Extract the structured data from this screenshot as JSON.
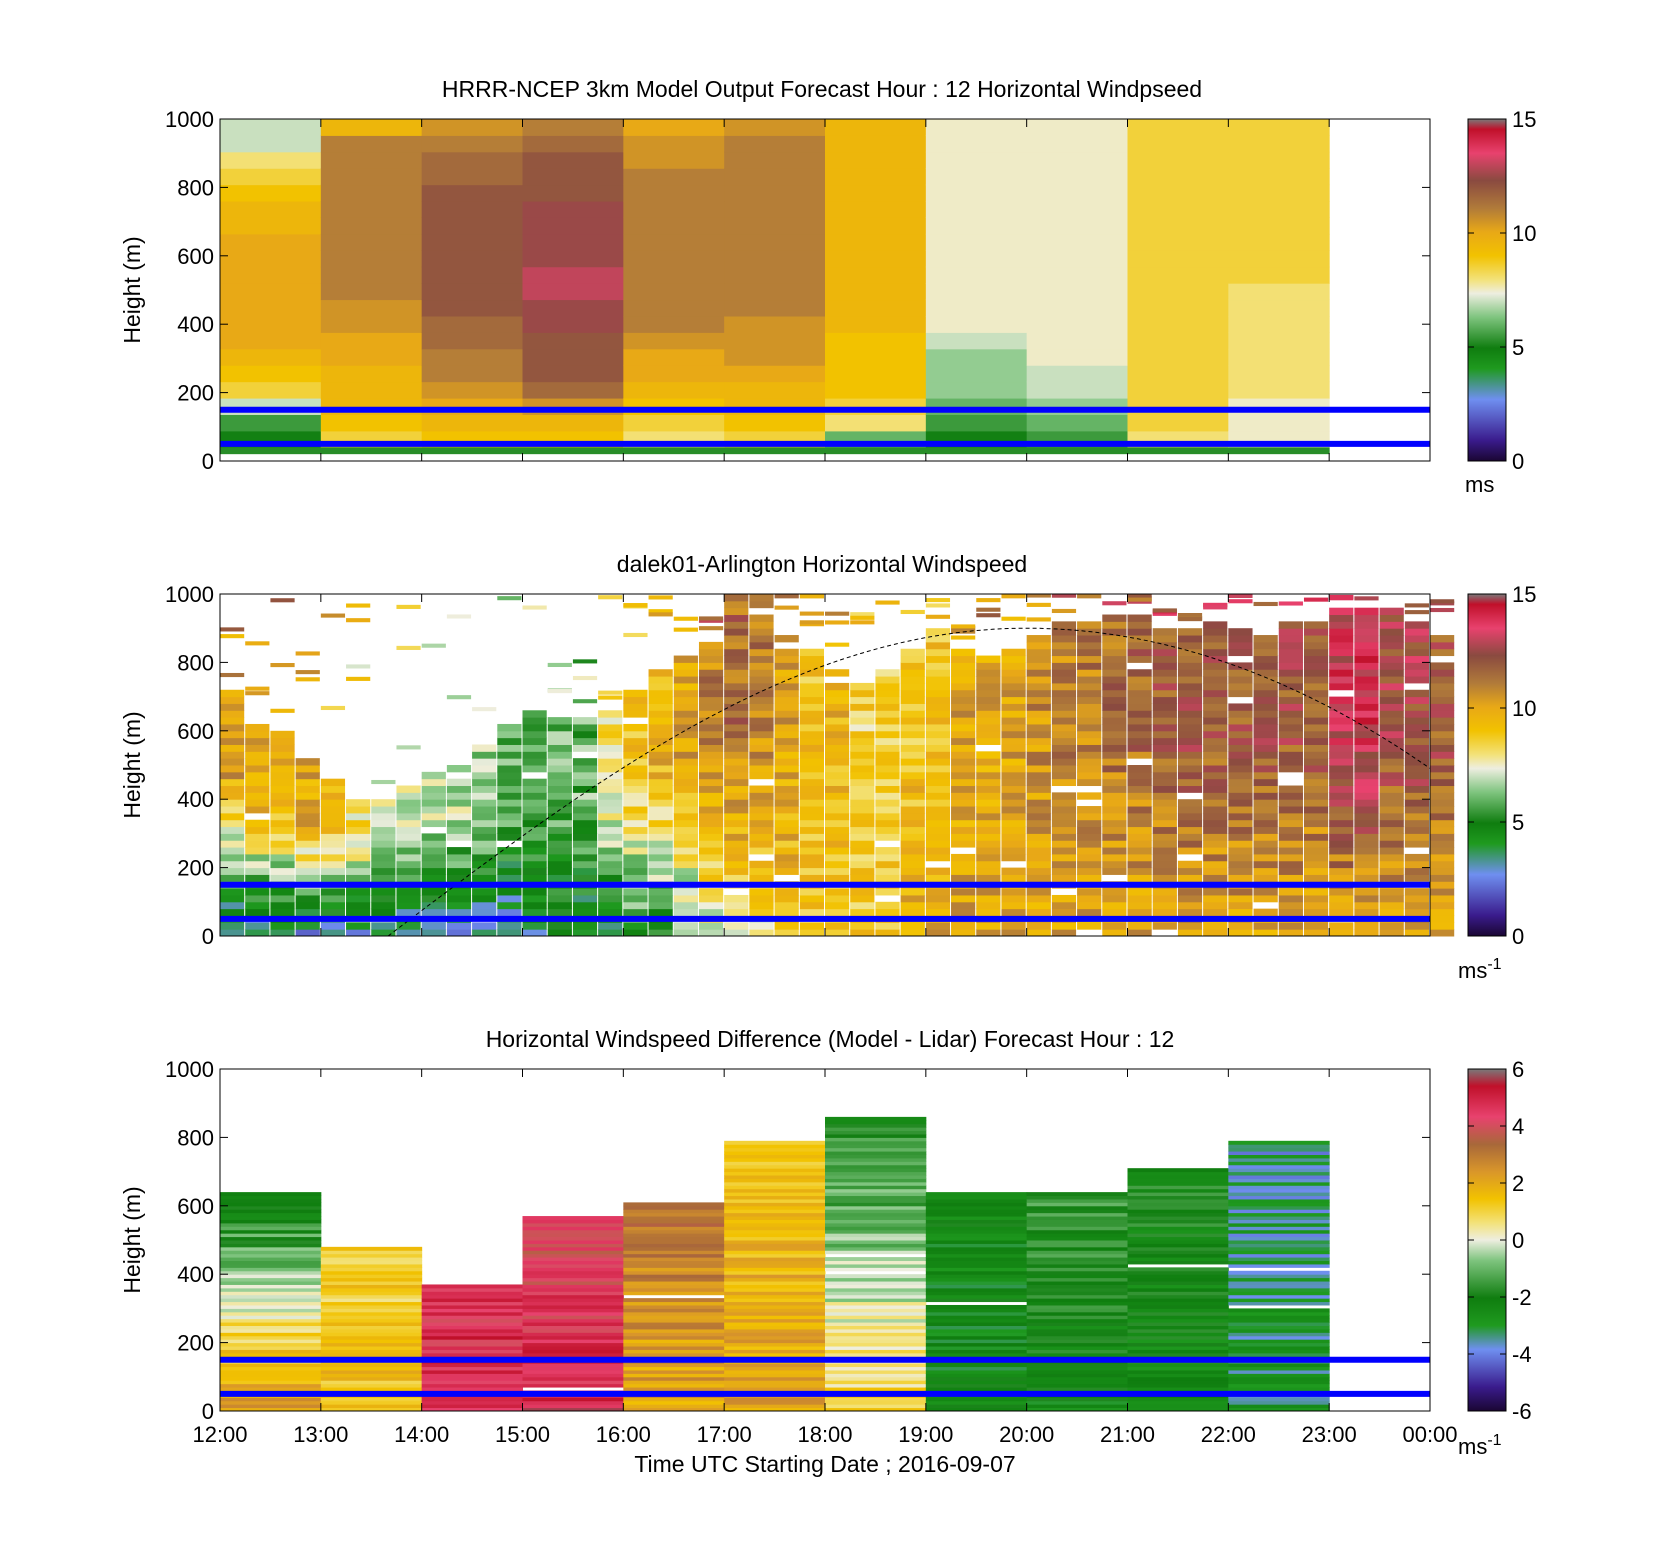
{
  "figure": {
    "xlabel": "Time UTC  Starting Date ; 2016-09-07",
    "x_ticks": [
      "12:00",
      "13:00",
      "14:00",
      "15:00",
      "16:00",
      "17:00",
      "18:00",
      "19:00",
      "20:00",
      "21:00",
      "22:00",
      "23:00",
      "00:00"
    ],
    "y_ticks": [
      "0",
      "200",
      "400",
      "600",
      "800",
      "1000"
    ],
    "ylabel": "Height (m)",
    "reference_lines_color": "#0000ff",
    "reference_lines_height_m": [
      50,
      150
    ]
  },
  "chart_data": [
    {
      "type": "heatmap",
      "id": "model",
      "title": "HRRR-NCEP 3km Model Output   Forecast Hour : 12 Horizontal Windpseed",
      "ylabel": "Height (m)",
      "ylim": [
        0,
        1000
      ],
      "xlim": [
        "12:00",
        "00:00"
      ],
      "colorbar": {
        "ticks": [
          "0",
          "5",
          "10",
          "15"
        ],
        "range": [
          0,
          15
        ],
        "unit_label": "ms",
        "unit_sup": ""
      },
      "colormap": "windspeed",
      "x_bins_hours": [
        12,
        13,
        14,
        15,
        16,
        17,
        18,
        19,
        20,
        21,
        22
      ],
      "profiles_ms": [
        [
          5,
          5.5,
          7,
          8.5,
          9,
          9.5,
          10,
          10,
          10,
          10,
          10,
          10,
          10,
          9.5,
          9.5,
          9,
          8.5,
          8,
          7,
          7
        ],
        [
          8.5,
          9,
          9.5,
          9.5,
          9.5,
          10,
          10,
          10.5,
          10.5,
          11,
          11,
          11,
          11,
          11,
          11,
          11,
          11,
          11,
          11,
          9.5
        ],
        [
          9,
          9.5,
          10,
          10.5,
          11,
          11,
          11.5,
          11.5,
          12,
          12,
          12,
          12,
          12,
          12,
          12,
          12,
          11.5,
          11.5,
          11,
          10.5
        ],
        [
          9,
          9.5,
          10.5,
          11.5,
          12,
          12,
          12,
          12.5,
          12.5,
          13,
          13,
          12.5,
          12.5,
          12.5,
          12.5,
          12,
          12,
          12,
          11.5,
          11
        ],
        [
          8,
          8.5,
          9,
          9.5,
          10,
          10,
          10.5,
          11,
          11,
          11,
          11,
          11,
          11,
          11,
          11,
          11,
          11,
          10.5,
          10.5,
          10
        ],
        [
          8.5,
          9,
          9.5,
          9.5,
          10,
          10.5,
          10.5,
          10.5,
          11,
          11,
          11,
          11,
          11,
          11,
          11,
          11,
          11,
          11,
          11,
          10.5
        ],
        [
          6,
          8,
          8.5,
          9,
          9,
          9,
          9,
          9.5,
          9.5,
          9.5,
          9.5,
          9.5,
          9.5,
          9.5,
          9.5,
          9.5,
          9.5,
          9.5,
          9.5,
          9.5
        ],
        [
          5,
          5.5,
          6,
          6.5,
          6.5,
          6.5,
          7,
          7.5,
          7.5,
          7.5,
          7.5,
          7.5,
          7.5,
          7.5,
          7.5,
          7.5,
          7.5,
          7.5,
          7.5,
          7.5
        ],
        [
          5.5,
          6,
          6.5,
          7,
          7,
          7.5,
          7.5,
          7.5,
          7.5,
          7.5,
          7.5,
          7.5,
          7.5,
          7.5,
          7.5,
          7.5,
          7.5,
          7.5,
          7.5,
          7.5
        ],
        [
          8,
          8.5,
          8.5,
          8.5,
          8.5,
          8.5,
          8.5,
          8.5,
          8.5,
          8.5,
          8.5,
          8.5,
          8.5,
          8.5,
          8.5,
          8.5,
          8.5,
          8.5,
          8.5,
          8.5
        ],
        [
          7.5,
          7.5,
          7.5,
          8,
          8,
          8,
          8,
          8,
          8,
          8,
          8.5,
          8.5,
          8.5,
          8.5,
          8.5,
          8.5,
          8.5,
          8.5,
          8.5,
          8.5
        ]
      ]
    },
    {
      "type": "heatmap",
      "id": "lidar",
      "title": "dalek01-Arlington  Horizontal Windspeed",
      "ylabel": "Height (m)",
      "ylim": [
        0,
        1000
      ],
      "xlim": [
        "12:00",
        "00:00"
      ],
      "colorbar": {
        "ticks": [
          "0",
          "5",
          "10",
          "15"
        ],
        "range": [
          0,
          15
        ],
        "unit_label": "ms",
        "unit_sup": "-1"
      },
      "colormap": "windspeed",
      "x_bin_minutes": 15,
      "profile_top_m": [
        720,
        620,
        610,
        520,
        460,
        410,
        410,
        450,
        490,
        510,
        560,
        620,
        660,
        650,
        640,
        660,
        720,
        780,
        830,
        860,
        1000,
        1000,
        880,
        860,
        780,
        760,
        780,
        840,
        900,
        840,
        830,
        840,
        880,
        920,
        920,
        940,
        940,
        900,
        900,
        930,
        900,
        880,
        920,
        920,
        960,
        960,
        960,
        920,
        880
      ],
      "surface_ms": [
        3,
        3,
        3,
        3,
        3,
        3,
        3,
        3,
        3,
        3,
        3,
        3,
        3.5,
        4,
        4,
        4,
        5,
        5,
        6,
        7,
        8,
        8,
        9,
        9,
        9,
        9,
        9,
        10,
        10,
        10,
        10,
        10,
        10,
        10,
        10,
        10,
        10,
        10,
        10,
        10,
        10,
        10,
        10,
        10,
        10,
        10,
        10,
        10,
        10
      ],
      "upper_ms": [
        10,
        10,
        10,
        10,
        9,
        8,
        7,
        7,
        7,
        7,
        6.5,
        6,
        6,
        6,
        6,
        8,
        9,
        9.5,
        10,
        11,
        11.5,
        11,
        10,
        9,
        9.5,
        8.5,
        8.5,
        9,
        9,
        10,
        10,
        10,
        10.5,
        11,
        11,
        11.5,
        11.5,
        12,
        12,
        12,
        12,
        12,
        12,
        12,
        13.5,
        13.5,
        12.5,
        12.5,
        12
      ],
      "sunrise_curve": {
        "start_time": "13:40",
        "peak_time": "20:00",
        "peak_height_m": 900,
        "end_height_m": 490,
        "style": "dashed"
      }
    },
    {
      "type": "heatmap",
      "id": "difference",
      "title": "Horizontal Windspeed Difference (Model - Lidar) Forecast Hour : 12",
      "ylabel": "Height (m)",
      "ylim": [
        0,
        1000
      ],
      "xlim": [
        "12:00",
        "00:00"
      ],
      "colorbar": {
        "ticks": [
          "-6",
          "-4",
          "-2",
          "0",
          "2",
          "4",
          "6"
        ],
        "range": [
          -6,
          6
        ],
        "unit_label": "ms",
        "unit_sup": "-1"
      },
      "colormap": "difference",
      "x_bins_hours": [
        12,
        13,
        14,
        15,
        16,
        17,
        18,
        19,
        20,
        21,
        22
      ],
      "column_top_m": [
        640,
        480,
        375,
        570,
        615,
        790,
        860,
        640,
        640,
        710,
        790
      ],
      "low_diff": [
        2.5,
        1.5,
        5,
        5,
        2,
        2,
        1,
        -2.5,
        -2.5,
        -2.5,
        -3
      ],
      "high_diff": [
        -2.5,
        1,
        4.5,
        4,
        3,
        1.5,
        -2,
        -2.5,
        -1.5,
        -2,
        -3.5
      ]
    }
  ]
}
